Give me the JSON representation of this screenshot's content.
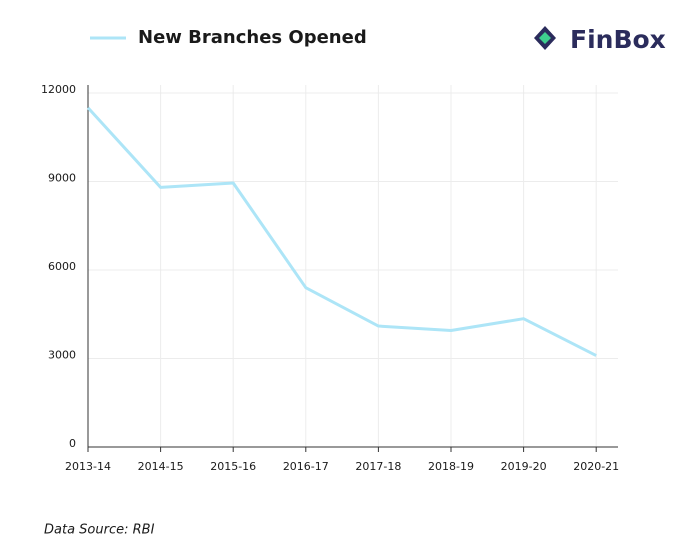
{
  "brand": "FinBox",
  "chart_data": {
    "type": "line",
    "categories": [
      "2013-14",
      "2014-15",
      "2015-16",
      "2016-17",
      "2017-18",
      "2018-19",
      "2019-20",
      "2020-21"
    ],
    "series": [
      {
        "name": "New Branches Opened",
        "color": "#ade5f7",
        "values": [
          11500,
          8800,
          8950,
          5400,
          4100,
          3950,
          4350,
          3100
        ]
      }
    ],
    "ylim": [
      0,
      12000
    ],
    "yticks": [
      0,
      3000,
      6000,
      9000,
      12000
    ],
    "grid": true,
    "legend": "top-left",
    "source": "Data Source: RBI"
  }
}
